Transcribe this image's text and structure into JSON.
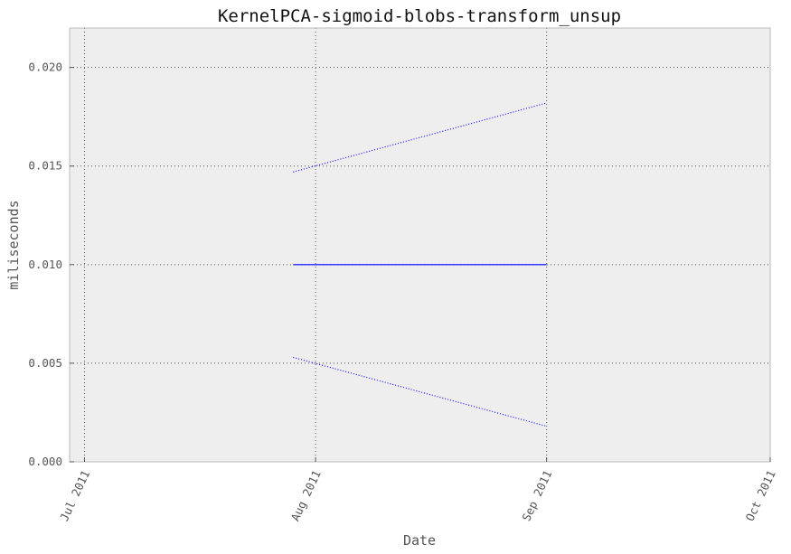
{
  "chart_data": {
    "type": "line",
    "title": "KernelPCA-sigmoid-blobs-transform_unsup",
    "xlabel": "Date",
    "ylabel": "miliseconds",
    "x_ticks": [
      "Jul 2011",
      "Aug 2011",
      "Sep 2011",
      "Oct 2011"
    ],
    "y_ticks": [
      "0.000",
      "0.005",
      "0.010",
      "0.015",
      "0.020"
    ],
    "xlim": [
      "2011-06-29",
      "2011-10-01"
    ],
    "ylim": [
      0,
      0.022
    ],
    "grid": true,
    "series": [
      {
        "style": "solid",
        "color": "#0000ff",
        "points": [
          {
            "x": "2011-07-29",
            "y": 0.01
          },
          {
            "x": "2011-09-01",
            "y": 0.01
          }
        ]
      },
      {
        "style": "dotted",
        "color": "#0000ff",
        "points": [
          {
            "x": "2011-07-29",
            "y": 0.0147
          },
          {
            "x": "2011-09-01",
            "y": 0.0182
          }
        ]
      },
      {
        "style": "dotted",
        "color": "#0000ff",
        "points": [
          {
            "x": "2011-07-29",
            "y": 0.0053
          },
          {
            "x": "2011-09-01",
            "y": 0.0018
          }
        ]
      }
    ],
    "colors": {
      "plot_background": "#eeeeee",
      "axes_edge": "#bbbbbb"
    }
  }
}
